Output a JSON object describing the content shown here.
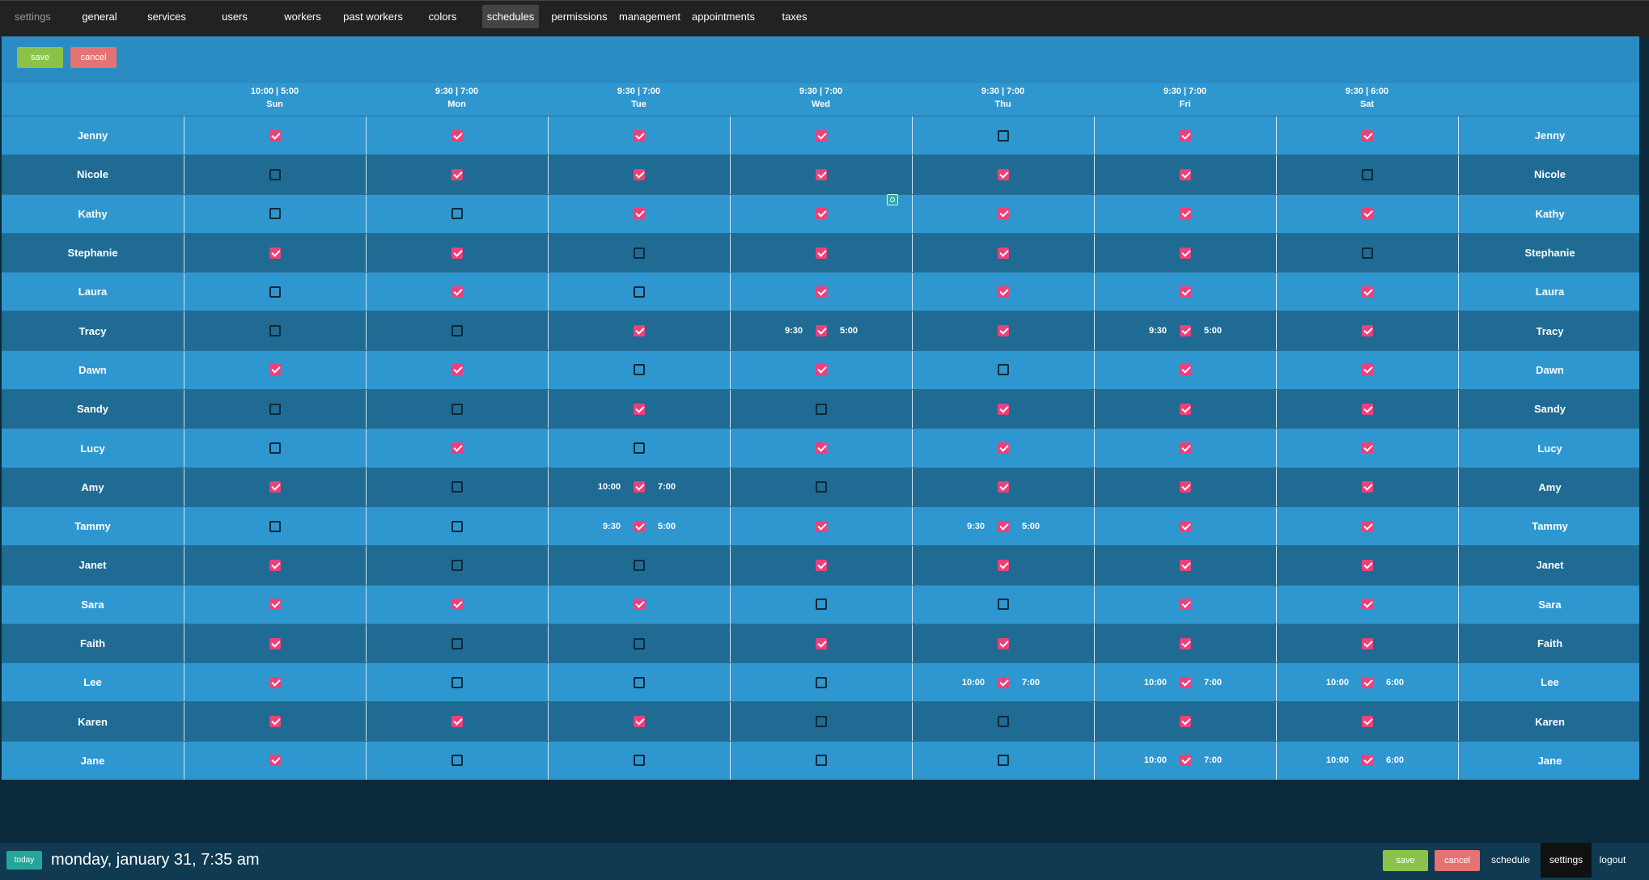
{
  "topnav": {
    "tabs": [
      {
        "label": "settings",
        "state": "muted"
      },
      {
        "label": "general"
      },
      {
        "label": "services"
      },
      {
        "label": "users"
      },
      {
        "label": "workers"
      },
      {
        "label": "past workers"
      },
      {
        "label": "colors"
      },
      {
        "label": "schedules",
        "state": "active"
      },
      {
        "label": "permissions"
      },
      {
        "label": "management"
      },
      {
        "label": "appointments"
      },
      {
        "label": "taxes"
      }
    ]
  },
  "toolbar": {
    "save_label": "save",
    "cancel_label": "cancel"
  },
  "days": [
    {
      "hours": "10:00 | 5:00",
      "label": "Sun"
    },
    {
      "hours": "9:30 | 7:00",
      "label": "Mon"
    },
    {
      "hours": "9:30 | 7:00",
      "label": "Tue"
    },
    {
      "hours": "9:30 | 7:00",
      "label": "Wed"
    },
    {
      "hours": "9:30 | 7:00",
      "label": "Thu"
    },
    {
      "hours": "9:30 | 7:00",
      "label": "Fri"
    },
    {
      "hours": "9:30 | 6:00",
      "label": "Sat"
    }
  ],
  "workers": [
    {
      "name": "Jenny",
      "days": [
        {
          "on": true
        },
        {
          "on": true
        },
        {
          "on": true
        },
        {
          "on": true
        },
        {
          "on": false
        },
        {
          "on": true
        },
        {
          "on": true
        }
      ]
    },
    {
      "name": "Nicole",
      "days": [
        {
          "on": false
        },
        {
          "on": true
        },
        {
          "on": true
        },
        {
          "on": true
        },
        {
          "on": true
        },
        {
          "on": true
        },
        {
          "on": false
        }
      ]
    },
    {
      "name": "Kathy",
      "days": [
        {
          "on": false
        },
        {
          "on": false
        },
        {
          "on": true
        },
        {
          "on": true
        },
        {
          "on": true
        },
        {
          "on": true
        },
        {
          "on": true
        }
      ]
    },
    {
      "name": "Stephanie",
      "days": [
        {
          "on": true
        },
        {
          "on": true
        },
        {
          "on": false
        },
        {
          "on": true
        },
        {
          "on": true
        },
        {
          "on": true
        },
        {
          "on": false
        }
      ]
    },
    {
      "name": "Laura",
      "days": [
        {
          "on": false
        },
        {
          "on": true
        },
        {
          "on": false
        },
        {
          "on": true
        },
        {
          "on": true
        },
        {
          "on": true
        },
        {
          "on": true
        }
      ]
    },
    {
      "name": "Tracy",
      "days": [
        {
          "on": false
        },
        {
          "on": false
        },
        {
          "on": true
        },
        {
          "on": true,
          "start": "9:30",
          "end": "5:00"
        },
        {
          "on": true
        },
        {
          "on": true,
          "start": "9:30",
          "end": "5:00"
        },
        {
          "on": true
        }
      ]
    },
    {
      "name": "Dawn",
      "days": [
        {
          "on": true
        },
        {
          "on": true
        },
        {
          "on": false
        },
        {
          "on": true
        },
        {
          "on": false
        },
        {
          "on": true
        },
        {
          "on": true
        }
      ]
    },
    {
      "name": "Sandy",
      "days": [
        {
          "on": false
        },
        {
          "on": false
        },
        {
          "on": true
        },
        {
          "on": false
        },
        {
          "on": true
        },
        {
          "on": true
        },
        {
          "on": true
        }
      ]
    },
    {
      "name": "Lucy",
      "days": [
        {
          "on": false
        },
        {
          "on": true
        },
        {
          "on": false
        },
        {
          "on": true
        },
        {
          "on": true
        },
        {
          "on": true
        },
        {
          "on": true
        }
      ]
    },
    {
      "name": "Amy",
      "days": [
        {
          "on": true
        },
        {
          "on": false
        },
        {
          "on": true,
          "start": "10:00",
          "end": "7:00"
        },
        {
          "on": false
        },
        {
          "on": true
        },
        {
          "on": true
        },
        {
          "on": true
        }
      ]
    },
    {
      "name": "Tammy",
      "days": [
        {
          "on": false
        },
        {
          "on": false
        },
        {
          "on": true,
          "start": "9:30",
          "end": "5:00"
        },
        {
          "on": true
        },
        {
          "on": true,
          "start": "9:30",
          "end": "5:00"
        },
        {
          "on": true
        },
        {
          "on": true
        }
      ]
    },
    {
      "name": "Janet",
      "days": [
        {
          "on": true
        },
        {
          "on": false
        },
        {
          "on": false
        },
        {
          "on": true
        },
        {
          "on": true
        },
        {
          "on": true
        },
        {
          "on": true
        }
      ]
    },
    {
      "name": "Sara",
      "days": [
        {
          "on": true
        },
        {
          "on": true
        },
        {
          "on": true
        },
        {
          "on": false
        },
        {
          "on": false
        },
        {
          "on": true
        },
        {
          "on": true
        }
      ]
    },
    {
      "name": "Faith",
      "days": [
        {
          "on": true
        },
        {
          "on": false
        },
        {
          "on": false
        },
        {
          "on": true
        },
        {
          "on": true
        },
        {
          "on": true
        },
        {
          "on": true
        }
      ]
    },
    {
      "name": "Lee",
      "days": [
        {
          "on": true
        },
        {
          "on": false
        },
        {
          "on": false
        },
        {
          "on": false
        },
        {
          "on": true,
          "start": "10:00",
          "end": "7:00"
        },
        {
          "on": true,
          "start": "10:00",
          "end": "7:00"
        },
        {
          "on": true,
          "start": "10:00",
          "end": "6:00"
        }
      ]
    },
    {
      "name": "Karen",
      "days": [
        {
          "on": true
        },
        {
          "on": true
        },
        {
          "on": true
        },
        {
          "on": false
        },
        {
          "on": false
        },
        {
          "on": true
        },
        {
          "on": true
        }
      ]
    },
    {
      "name": "Jane",
      "days": [
        {
          "on": true
        },
        {
          "on": false
        },
        {
          "on": false
        },
        {
          "on": false
        },
        {
          "on": false
        },
        {
          "on": true,
          "start": "10:00",
          "end": "7:00"
        },
        {
          "on": true,
          "start": "10:00",
          "end": "6:00"
        }
      ]
    }
  ],
  "footer": {
    "today_label": "today",
    "datetime": "monday, january 31, 7:35 am",
    "save_label": "save",
    "cancel_label": "cancel",
    "links": [
      {
        "label": "schedule"
      },
      {
        "label": "settings",
        "state": "active"
      },
      {
        "label": "logout"
      }
    ]
  }
}
